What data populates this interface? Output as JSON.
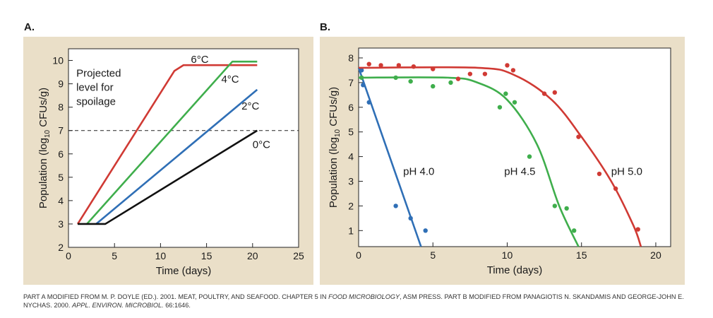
{
  "caption": {
    "part_a_prefix": "PART A MODIFIED FROM M. P. DOYLE (ED.). 2001. MEAT, POULTRY, AND SEAFOOD. CHAPTER 5 IN ",
    "part_a_book": "FOOD MICROBIOLOGY",
    "part_a_suffix": ", ASM PRESS. PART B MODIFIED FROM PANAGIOTIS N. SKANDAMIS AND GEORGE-JOHN E. NYCHAS. 2000. ",
    "part_b_journal": "APPL. ENVIRON. MICROBIOL.",
    "part_b_suffix": " 66:1646."
  },
  "colors": {
    "red": "#d03a34",
    "green": "#3fae4c",
    "blue": "#2f6fb6",
    "black": "#111111",
    "panel_bg": "#eadfc8"
  },
  "chart_data": [
    {
      "panel": "A.",
      "type": "line",
      "xlabel": "Time (days)",
      "ylabel_prefix": "Population (log",
      "ylabel_sub": "10",
      "ylabel_suffix": " CFUs/g)",
      "xlim": [
        0,
        25
      ],
      "ylim": [
        2,
        10.5
      ],
      "xticks": [
        0,
        5,
        10,
        15,
        20,
        25
      ],
      "yticks": [
        2,
        3,
        4,
        5,
        6,
        7,
        8,
        9,
        10
      ],
      "threshold": {
        "y": 7,
        "style": "dashed"
      },
      "annotation": {
        "lines": [
          "Projected",
          "level for",
          "spoilage"
        ]
      },
      "series": [
        {
          "name": "6°C",
          "color": "#d03a34",
          "points": [
            [
              1,
              3
            ],
            [
              11.5,
              9.55
            ],
            [
              12.5,
              9.8
            ],
            [
              20.5,
              9.8
            ]
          ],
          "label_at": [
            13.3,
            10.05
          ]
        },
        {
          "name": "4°C",
          "color": "#3fae4c",
          "points": [
            [
              2,
              3
            ],
            [
              17.8,
              9.95
            ],
            [
              20.5,
              9.95
            ]
          ],
          "label_at": [
            16.6,
            9.2
          ]
        },
        {
          "name": "2°C",
          "color": "#2f6fb6",
          "points": [
            [
              3,
              3
            ],
            [
              20.5,
              8.75
            ]
          ],
          "label_at": [
            18.8,
            8.05
          ]
        },
        {
          "name": "0°C",
          "color": "#111111",
          "points": [
            [
              1,
              3
            ],
            [
              4,
              3
            ],
            [
              20.5,
              7
            ]
          ],
          "label_at": [
            20.0,
            6.4
          ]
        }
      ]
    },
    {
      "panel": "B.",
      "type": "scatter",
      "xlabel": "Time (days)",
      "ylabel_prefix": "Population (log",
      "ylabel_sub": "10",
      "ylabel_suffix": " CFUs/g)",
      "xlim": [
        0,
        21
      ],
      "ylim": [
        0.35,
        8.4
      ],
      "xticks": [
        0,
        5,
        10,
        15,
        20
      ],
      "yticks": [
        1,
        2,
        3,
        4,
        5,
        6,
        7,
        8
      ],
      "series": [
        {
          "name": "pH 4.0",
          "color": "#2f6fb6",
          "label_at": [
            3.0,
            3.4
          ],
          "points": [
            [
              0.2,
              7.5
            ],
            [
              0.3,
              6.9
            ],
            [
              0.7,
              6.2
            ],
            [
              2.5,
              2.0
            ],
            [
              3.5,
              1.5
            ],
            [
              4.5,
              1.0
            ]
          ],
          "fit": [
            [
              0,
              7.6
            ],
            [
              4.2,
              0.35
            ]
          ]
        },
        {
          "name": "pH 4.5",
          "color": "#3fae4c",
          "label_at": [
            9.8,
            3.4
          ],
          "points": [
            [
              0.2,
              7.2
            ],
            [
              2.5,
              7.2
            ],
            [
              3.5,
              7.05
            ],
            [
              5.0,
              6.85
            ],
            [
              6.2,
              7.0
            ],
            [
              9.5,
              6.0
            ],
            [
              9.9,
              6.55
            ],
            [
              10.5,
              6.2
            ],
            [
              11.5,
              4.0
            ],
            [
              13.2,
              2.0
            ],
            [
              14.0,
              1.9
            ],
            [
              14.5,
              1.0
            ]
          ],
          "fit": [
            [
              0,
              7.2
            ],
            [
              6,
              7.2
            ],
            [
              8,
              7.0
            ],
            [
              10,
              6.3
            ],
            [
              12,
              4.5
            ],
            [
              13.5,
              2.0
            ],
            [
              14.8,
              0.35
            ]
          ]
        },
        {
          "name": "pH 5.0",
          "color": "#d03a34",
          "label_at": [
            17.0,
            3.4
          ],
          "points": [
            [
              0.7,
              7.75
            ],
            [
              1.5,
              7.7
            ],
            [
              2.7,
              7.7
            ],
            [
              3.7,
              7.65
            ],
            [
              5.0,
              7.55
            ],
            [
              6.7,
              7.15
            ],
            [
              7.5,
              7.35
            ],
            [
              8.5,
              7.35
            ],
            [
              10.0,
              7.7
            ],
            [
              10.4,
              7.5
            ],
            [
              12.5,
              6.55
            ],
            [
              13.2,
              6.6
            ],
            [
              14.8,
              4.8
            ],
            [
              16.2,
              3.3
            ],
            [
              17.3,
              2.7
            ],
            [
              18.8,
              1.05
            ]
          ],
          "fit": [
            [
              0,
              7.6
            ],
            [
              8,
              7.6
            ],
            [
              10.5,
              7.3
            ],
            [
              13,
              6.3
            ],
            [
              15,
              4.8
            ],
            [
              17,
              3.0
            ],
            [
              18.5,
              1.2
            ],
            [
              19,
              0.35
            ]
          ]
        }
      ]
    }
  ]
}
